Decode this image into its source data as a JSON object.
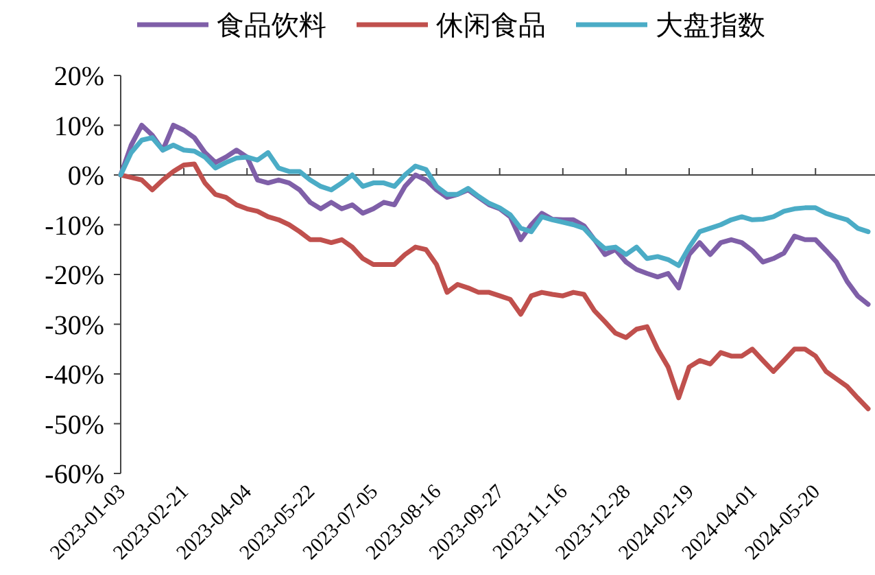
{
  "chart_data": {
    "type": "line",
    "categories": [
      "2023-01-03",
      null,
      null,
      null,
      null,
      null,
      "2023-02-21",
      null,
      null,
      null,
      null,
      null,
      "2023-04-04",
      null,
      null,
      null,
      null,
      null,
      "2023-05-22",
      null,
      null,
      null,
      null,
      null,
      "2023-07-05",
      null,
      null,
      null,
      null,
      null,
      "2023-08-16",
      null,
      null,
      null,
      null,
      null,
      "2023-09-27",
      null,
      null,
      null,
      null,
      null,
      "2023-11-16",
      null,
      null,
      null,
      null,
      null,
      "2023-12-28",
      null,
      null,
      null,
      null,
      null,
      "2024-02-19",
      null,
      null,
      null,
      null,
      null,
      "2024-04-01",
      null,
      null,
      null,
      null,
      null,
      "2024-05-20",
      null,
      null,
      null,
      null,
      null
    ],
    "series": [
      {
        "name": "食品饮料",
        "color": "#7f5fa8",
        "values": [
          0,
          6,
          10,
          8,
          5,
          10,
          9,
          7.5,
          4.5,
          2.5,
          3.6,
          5,
          3.6,
          -1,
          -1.6,
          -1,
          -1.6,
          -3,
          -5.5,
          -6.8,
          -5.5,
          -6.8,
          -6,
          -7.7,
          -6.8,
          -5.5,
          -6,
          -2.3,
          0,
          -1,
          -3,
          -4.5,
          -3.9,
          -3,
          -4.5,
          -6,
          -6.8,
          -8.4,
          -13,
          -10,
          -7.7,
          -8.9,
          -9,
          -9,
          -10.2,
          -13,
          -16,
          -15,
          -17.5,
          -19,
          -19.8,
          -20.5,
          -19.8,
          -22.7,
          -16,
          -13.6,
          -16,
          -13.6,
          -13,
          -13.6,
          -15.2,
          -17.5,
          -16.8,
          -15.7,
          -12.3,
          -13,
          -13,
          -15.2,
          -17.5,
          -21.4,
          -24.3,
          -26
        ]
      },
      {
        "name": "休闲食品",
        "color": "#c0504d",
        "values": [
          0,
          -0.5,
          -1,
          -3,
          -1,
          0.7,
          2,
          2.2,
          -1.6,
          -3.9,
          -4.5,
          -6,
          -6.8,
          -7.3,
          -8.4,
          -9,
          -10,
          -11.4,
          -13,
          -13,
          -13.6,
          -13,
          -14.5,
          -16.8,
          -18,
          -18,
          -18,
          -16,
          -14.5,
          -15,
          -18,
          -23.6,
          -22,
          -22.7,
          -23.6,
          -23.6,
          -24.3,
          -25,
          -28,
          -24.3,
          -23.6,
          -24,
          -24.3,
          -23.6,
          -24,
          -27.3,
          -29.5,
          -31.8,
          -32.7,
          -31,
          -30.5,
          -35,
          -38.6,
          -44.8,
          -38.6,
          -37.3,
          -38,
          -35.7,
          -36.4,
          -36.4,
          -35,
          -37.3,
          -39.5,
          -37.3,
          -35,
          -35,
          -36.4,
          -39.5,
          -41,
          -42.5,
          -44.8,
          -47
        ]
      },
      {
        "name": "大盘指数",
        "color": "#4bacc6",
        "values": [
          0,
          4.5,
          7,
          7.5,
          5,
          6,
          5,
          4.8,
          3.6,
          1.4,
          2.5,
          3.4,
          3.6,
          3,
          4.5,
          1.4,
          0.7,
          0.7,
          -1,
          -2.3,
          -3,
          -1.6,
          0,
          -2.3,
          -1.6,
          -1.6,
          -2.3,
          0,
          1.8,
          1.1,
          -2.3,
          -3.9,
          -3.9,
          -2.7,
          -4.3,
          -5.7,
          -6.6,
          -8,
          -10.7,
          -11.4,
          -8.4,
          -9,
          -9.5,
          -10,
          -10.7,
          -13,
          -14.8,
          -14.5,
          -16,
          -14.5,
          -16.8,
          -16.4,
          -17,
          -18.2,
          -14.5,
          -11.4,
          -10.7,
          -10,
          -9,
          -8.4,
          -9,
          -8.9,
          -8.4,
          -7.3,
          -6.8,
          -6.6,
          -6.6,
          -7.7,
          -8.4,
          -9,
          -10.7,
          -11.4
        ]
      }
    ],
    "ylim": [
      -60,
      20
    ],
    "yticks": [
      {
        "value": 20,
        "label": "20%"
      },
      {
        "value": 10,
        "label": "10%"
      },
      {
        "value": 0,
        "label": "0%"
      },
      {
        "value": -10,
        "label": "-10%"
      },
      {
        "value": -20,
        "label": "-20%"
      },
      {
        "value": -30,
        "label": "-30%"
      },
      {
        "value": -40,
        "label": "-40%"
      },
      {
        "value": -50,
        "label": "-50%"
      },
      {
        "value": -60,
        "label": "-60%"
      }
    ],
    "legend": "top",
    "marker": "none",
    "line_style": "solid"
  }
}
